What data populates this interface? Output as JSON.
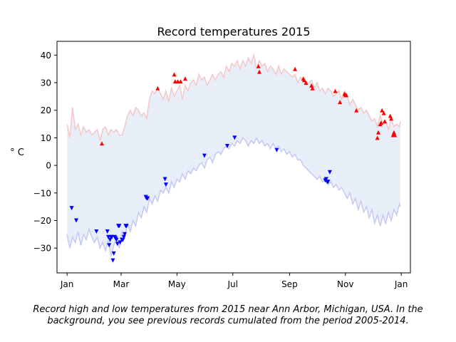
{
  "chart_data": {
    "type": "line",
    "title": "Record temperatures 2015",
    "ylabel": "° C",
    "xlabel": "",
    "xlim": [
      -11,
      375
    ],
    "ylim": [
      -39,
      45
    ],
    "x_ticks": [
      {
        "label": "Jan",
        "day": 0
      },
      {
        "label": "Mar",
        "day": 59
      },
      {
        "label": "May",
        "day": 120
      },
      {
        "label": "Jul",
        "day": 181
      },
      {
        "label": "Sep",
        "day": 243
      },
      {
        "label": "Nov",
        "day": 304
      },
      {
        "label": "Jan",
        "day": 365
      }
    ],
    "y_ticks": [
      -30,
      -20,
      -10,
      0,
      10,
      20,
      30,
      40
    ],
    "grid": false,
    "background_band": {
      "description_shown": false,
      "upper_line_color": "#f4c7c9",
      "lower_line_color": "#c5c9f2",
      "fill_color": "#e7eef8",
      "upper": [
        [
          0,
          15
        ],
        [
          3,
          10
        ],
        [
          6,
          21
        ],
        [
          9,
          13
        ],
        [
          12,
          15
        ],
        [
          15,
          11
        ],
        [
          18,
          14
        ],
        [
          21,
          12
        ],
        [
          24,
          13
        ],
        [
          27,
          11
        ],
        [
          30,
          12
        ],
        [
          33,
          13
        ],
        [
          36,
          9
        ],
        [
          39,
          13
        ],
        [
          42,
          14
        ],
        [
          45,
          11
        ],
        [
          48,
          13
        ],
        [
          51,
          12
        ],
        [
          54,
          13
        ],
        [
          57,
          11
        ],
        [
          60,
          11
        ],
        [
          63,
          14
        ],
        [
          66,
          18
        ],
        [
          69,
          20
        ],
        [
          72,
          18
        ],
        [
          75,
          21
        ],
        [
          78,
          20
        ],
        [
          81,
          18
        ],
        [
          84,
          19
        ],
        [
          87,
          17
        ],
        [
          90,
          24
        ],
        [
          93,
          27
        ],
        [
          96,
          26
        ],
        [
          99,
          28
        ],
        [
          102,
          26
        ],
        [
          105,
          24
        ],
        [
          108,
          27
        ],
        [
          111,
          23
        ],
        [
          114,
          28
        ],
        [
          117,
          25
        ],
        [
          120,
          27
        ],
        [
          123,
          29
        ],
        [
          126,
          24
        ],
        [
          129,
          29
        ],
        [
          132,
          27
        ],
        [
          135,
          30
        ],
        [
          138,
          31
        ],
        [
          141,
          29
        ],
        [
          144,
          33
        ],
        [
          147,
          31
        ],
        [
          150,
          32
        ],
        [
          153,
          29
        ],
        [
          156,
          31
        ],
        [
          159,
          33
        ],
        [
          162,
          31
        ],
        [
          165,
          33
        ],
        [
          168,
          34
        ],
        [
          171,
          32
        ],
        [
          174,
          36
        ],
        [
          177,
          34
        ],
        [
          180,
          37
        ],
        [
          183,
          36
        ],
        [
          186,
          38
        ],
        [
          189,
          35
        ],
        [
          192,
          38
        ],
        [
          195,
          36
        ],
        [
          198,
          39
        ],
        [
          201,
          37
        ],
        [
          204,
          40
        ],
        [
          207,
          35
        ],
        [
          210,
          38
        ],
        [
          213,
          36
        ],
        [
          216,
          37
        ],
        [
          219,
          34
        ],
        [
          222,
          36
        ],
        [
          225,
          35
        ],
        [
          228,
          33
        ],
        [
          231,
          36
        ],
        [
          234,
          33
        ],
        [
          237,
          35
        ],
        [
          240,
          34
        ],
        [
          243,
          33
        ],
        [
          246,
          32
        ],
        [
          249,
          33
        ],
        [
          252,
          30
        ],
        [
          255,
          32
        ],
        [
          258,
          31
        ],
        [
          261,
          29
        ],
        [
          264,
          30
        ],
        [
          267,
          31
        ],
        [
          270,
          28
        ],
        [
          273,
          30
        ],
        [
          276,
          27
        ],
        [
          279,
          28
        ],
        [
          282,
          26
        ],
        [
          285,
          28
        ],
        [
          288,
          27
        ],
        [
          291,
          25
        ],
        [
          294,
          26
        ],
        [
          297,
          27
        ],
        [
          300,
          24
        ],
        [
          303,
          27
        ],
        [
          306,
          25
        ],
        [
          309,
          22
        ],
        [
          312,
          24
        ],
        [
          315,
          22
        ],
        [
          318,
          20
        ],
        [
          321,
          21
        ],
        [
          324,
          19
        ],
        [
          327,
          20
        ],
        [
          330,
          18
        ],
        [
          333,
          16
        ],
        [
          336,
          17
        ],
        [
          339,
          14
        ],
        [
          342,
          18
        ],
        [
          345,
          15
        ],
        [
          348,
          16
        ],
        [
          351,
          13
        ],
        [
          354,
          17
        ],
        [
          357,
          14
        ],
        [
          360,
          15
        ],
        [
          363,
          14
        ],
        [
          364,
          16
        ]
      ],
      "lower": [
        [
          0,
          -25
        ],
        [
          3,
          -30
        ],
        [
          6,
          -26
        ],
        [
          9,
          -28
        ],
        [
          12,
          -24
        ],
        [
          15,
          -29
        ],
        [
          18,
          -25
        ],
        [
          21,
          -27
        ],
        [
          24,
          -23
        ],
        [
          27,
          -26
        ],
        [
          30,
          -28
        ],
        [
          33,
          -26
        ],
        [
          36,
          -30
        ],
        [
          39,
          -28
        ],
        [
          42,
          -31
        ],
        [
          45,
          -27
        ],
        [
          48,
          -33
        ],
        [
          51,
          -29
        ],
        [
          54,
          -26
        ],
        [
          57,
          -30
        ],
        [
          60,
          -24
        ],
        [
          63,
          -26
        ],
        [
          66,
          -21
        ],
        [
          69,
          -24
        ],
        [
          72,
          -20
        ],
        [
          75,
          -22
        ],
        [
          78,
          -17
        ],
        [
          81,
          -19
        ],
        [
          84,
          -15
        ],
        [
          87,
          -17
        ],
        [
          90,
          -12
        ],
        [
          93,
          -14
        ],
        [
          96,
          -11
        ],
        [
          99,
          -13
        ],
        [
          102,
          -9
        ],
        [
          105,
          -10
        ],
        [
          108,
          -8
        ],
        [
          111,
          -10
        ],
        [
          114,
          -6
        ],
        [
          117,
          -8
        ],
        [
          120,
          -5
        ],
        [
          123,
          -6
        ],
        [
          126,
          -3
        ],
        [
          129,
          -5
        ],
        [
          132,
          -2
        ],
        [
          135,
          -3
        ],
        [
          138,
          -1
        ],
        [
          141,
          -2
        ],
        [
          144,
          0
        ],
        [
          147,
          1
        ],
        [
          150,
          -1
        ],
        [
          153,
          2
        ],
        [
          156,
          3
        ],
        [
          159,
          1
        ],
        [
          162,
          4
        ],
        [
          165,
          5
        ],
        [
          168,
          4
        ],
        [
          171,
          6
        ],
        [
          174,
          7
        ],
        [
          177,
          6
        ],
        [
          180,
          8
        ],
        [
          183,
          7
        ],
        [
          186,
          9
        ],
        [
          189,
          8
        ],
        [
          192,
          10
        ],
        [
          195,
          9
        ],
        [
          198,
          7
        ],
        [
          201,
          9
        ],
        [
          204,
          8
        ],
        [
          207,
          10
        ],
        [
          210,
          8
        ],
        [
          213,
          9
        ],
        [
          216,
          7
        ],
        [
          219,
          8
        ],
        [
          222,
          6
        ],
        [
          225,
          8
        ],
        [
          228,
          6
        ],
        [
          231,
          7
        ],
        [
          234,
          5
        ],
        [
          237,
          6
        ],
        [
          240,
          4
        ],
        [
          243,
          5
        ],
        [
          246,
          3
        ],
        [
          249,
          4
        ],
        [
          252,
          2
        ],
        [
          255,
          2
        ],
        [
          258,
          0
        ],
        [
          261,
          -1
        ],
        [
          264,
          -2
        ],
        [
          267,
          -3
        ],
        [
          270,
          -4
        ],
        [
          273,
          -5
        ],
        [
          276,
          -4
        ],
        [
          279,
          -6
        ],
        [
          282,
          -5
        ],
        [
          285,
          -7
        ],
        [
          288,
          -6
        ],
        [
          291,
          -8
        ],
        [
          294,
          -7
        ],
        [
          297,
          -9
        ],
        [
          300,
          -8
        ],
        [
          303,
          -10
        ],
        [
          306,
          -12
        ],
        [
          309,
          -10
        ],
        [
          312,
          -14
        ],
        [
          315,
          -12
        ],
        [
          318,
          -16
        ],
        [
          321,
          -13
        ],
        [
          324,
          -17
        ],
        [
          327,
          -15
        ],
        [
          330,
          -19
        ],
        [
          333,
          -16
        ],
        [
          336,
          -21
        ],
        [
          339,
          -18
        ],
        [
          342,
          -22
        ],
        [
          345,
          -18
        ],
        [
          348,
          -21
        ],
        [
          351,
          -17
        ],
        [
          354,
          -20
        ],
        [
          357,
          -16
        ],
        [
          360,
          -18
        ],
        [
          363,
          -14
        ],
        [
          364,
          -15
        ]
      ]
    },
    "series": [
      {
        "kind": "record_high",
        "color": "#ff0000",
        "marker": "triangle-up",
        "points": [
          [
            38,
            8
          ],
          [
            99,
            28
          ],
          [
            117,
            33
          ],
          [
            118,
            30.5
          ],
          [
            121,
            30.5
          ],
          [
            124,
            30.5
          ],
          [
            129,
            31.5
          ],
          [
            209,
            36
          ],
          [
            210,
            34
          ],
          [
            249,
            35
          ],
          [
            258,
            31.5
          ],
          [
            259,
            31
          ],
          [
            261,
            30
          ],
          [
            267,
            29
          ],
          [
            268,
            28
          ],
          [
            293,
            27
          ],
          [
            303,
            26
          ],
          [
            304,
            25.5
          ],
          [
            305,
            25.5
          ],
          [
            298,
            23
          ],
          [
            316,
            20
          ],
          [
            339,
            10
          ],
          [
            340,
            12
          ],
          [
            342,
            15
          ],
          [
            343,
            15.5
          ],
          [
            344,
            20
          ],
          [
            346,
            19
          ],
          [
            347,
            16
          ],
          [
            353,
            18
          ],
          [
            354,
            17
          ],
          [
            356,
            11
          ],
          [
            357,
            12
          ],
          [
            358,
            11
          ]
        ]
      },
      {
        "kind": "record_low",
        "color": "#0000ff",
        "marker": "triangle-down",
        "points": [
          [
            5,
            -15.5
          ],
          [
            10,
            -20
          ],
          [
            32,
            -24
          ],
          [
            44,
            -24
          ],
          [
            45,
            -26
          ],
          [
            46,
            -29
          ],
          [
            47,
            -27
          ],
          [
            48,
            -26
          ],
          [
            49,
            -26
          ],
          [
            50,
            -34.5
          ],
          [
            51,
            -32
          ],
          [
            52,
            -26
          ],
          [
            53,
            -26.5
          ],
          [
            54,
            -27
          ],
          [
            55,
            -28.5
          ],
          [
            56,
            -22
          ],
          [
            57,
            -22
          ],
          [
            58,
            -28
          ],
          [
            60,
            -27
          ],
          [
            61,
            -27
          ],
          [
            62,
            -26
          ],
          [
            63,
            -25
          ],
          [
            64,
            -22
          ],
          [
            65,
            -22
          ],
          [
            86,
            -11.5
          ],
          [
            87,
            -12
          ],
          [
            88,
            -12
          ],
          [
            107,
            -5
          ],
          [
            108,
            -7
          ],
          [
            150,
            3.5
          ],
          [
            175,
            7
          ],
          [
            183,
            10
          ],
          [
            229,
            5.5
          ],
          [
            282,
            -5.5
          ],
          [
            283,
            -5
          ],
          [
            284,
            -6
          ],
          [
            285,
            -6
          ],
          [
            287,
            -2.5
          ]
        ]
      }
    ]
  },
  "caption": {
    "line1": "Record high and low temperatures from 2015 near Ann Arbor, Michigan, USA. In the",
    "line2": "background, you see previous records cumulated from the period 2005-2014."
  }
}
